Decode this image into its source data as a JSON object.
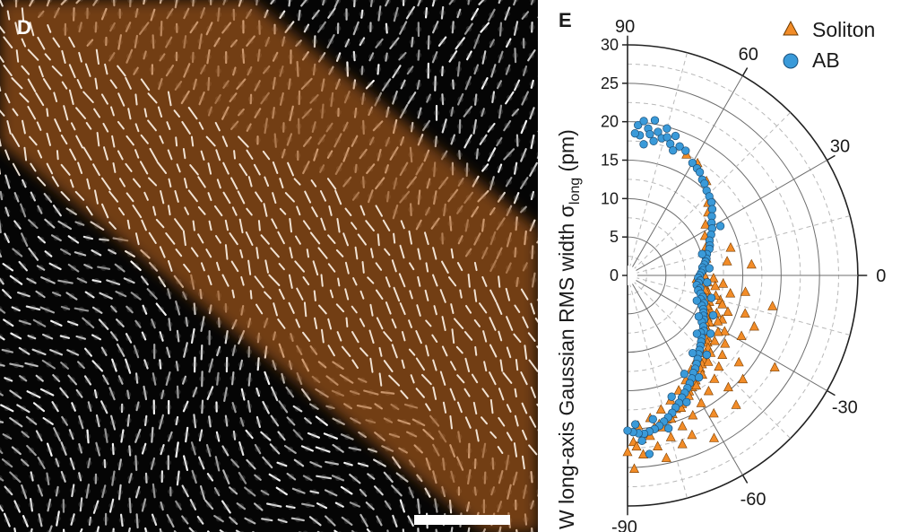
{
  "panel_d": {
    "letter": "D",
    "band_color": "#b4611c",
    "scale_bar_color": "#ffffff"
  },
  "chart_data": {
    "panel_letter": "E",
    "type": "scatter",
    "coordinate_system": "polar",
    "ylabel": "W long-axis Gaussian RMS width",
    "ylabel_symbol": "σ",
    "ylabel_subscript": "long",
    "ylabel_unit": "(pm)",
    "radial_range": [
      0,
      30
    ],
    "radial_ticks": [
      0,
      5,
      10,
      15,
      20,
      25,
      30
    ],
    "angular_range_deg": [
      -90,
      90
    ],
    "angular_labels": [
      "90",
      "60",
      "30",
      "0",
      "-30",
      "-60",
      "-90"
    ],
    "grid": true,
    "legend_position": "top-right",
    "series": [
      {
        "name": "Soliton",
        "marker": "triangle",
        "color": "#f28c28",
        "points": [
          [
            0,
            10
          ],
          [
            -3,
            9
          ],
          [
            -5,
            10.5
          ],
          [
            -8,
            10.2
          ],
          [
            -12,
            10.7
          ],
          [
            -15,
            10.8
          ],
          [
            -18,
            11.2
          ],
          [
            -22,
            11.5
          ],
          [
            -25,
            11.4
          ],
          [
            -28,
            11.8
          ],
          [
            -30,
            12.3
          ],
          [
            -33,
            12.1
          ],
          [
            -35,
            12.9
          ],
          [
            -38,
            13.2
          ],
          [
            -40,
            13.6
          ],
          [
            -42,
            14.1
          ],
          [
            -45,
            14.3
          ],
          [
            -48,
            14.9
          ],
          [
            -50,
            15.1
          ],
          [
            -52,
            15.4
          ],
          [
            -55,
            15.9
          ],
          [
            -57,
            16.3
          ],
          [
            -60,
            16.8
          ],
          [
            -62,
            17.1
          ],
          [
            -65,
            17.8
          ],
          [
            -67,
            18.2
          ],
          [
            -70,
            18.5
          ],
          [
            -72,
            19
          ],
          [
            -75,
            19.4
          ],
          [
            -78,
            19.8
          ],
          [
            -80,
            20.1
          ],
          [
            -83,
            20.8
          ],
          [
            -85,
            21.4
          ],
          [
            -88,
            21.7
          ],
          [
            -5,
            12.5
          ],
          [
            -10,
            13.6
          ],
          [
            -15,
            12.5
          ],
          [
            -20,
            13.9
          ],
          [
            -25,
            13.6
          ],
          [
            -30,
            14.6
          ],
          [
            -35,
            15.5
          ],
          [
            -40,
            16.1
          ],
          [
            -45,
            16.8
          ],
          [
            -50,
            17.6
          ],
          [
            -55,
            18.4
          ],
          [
            -60,
            19.2
          ],
          [
            -65,
            20.1
          ],
          [
            -70,
            20.9
          ],
          [
            -75,
            21.8
          ],
          [
            -80,
            22.6
          ],
          [
            -85,
            23.4
          ],
          [
            -8,
            15.5
          ],
          [
            -18,
            16.1
          ],
          [
            -28,
            16.8
          ],
          [
            -38,
            18.4
          ],
          [
            -48,
            19.6
          ],
          [
            -58,
            21.2
          ],
          [
            -68,
            22.4
          ],
          [
            -78,
            24.3
          ],
          [
            -88,
            25.2
          ],
          [
            -2,
            11.2
          ],
          [
            -7,
            11.5
          ],
          [
            -13,
            11.8
          ],
          [
            -17,
            12.9
          ],
          [
            -23,
            12.6
          ],
          [
            -27,
            13.2
          ],
          [
            -32,
            13.9
          ],
          [
            -37,
            14.2
          ],
          [
            -43,
            14.8
          ],
          [
            -47,
            15.4
          ],
          [
            -53,
            16.2
          ],
          [
            -58,
            16.9
          ],
          [
            -63,
            17.6
          ],
          [
            -68,
            18.6
          ],
          [
            -73,
            19.5
          ],
          [
            -77,
            20.3
          ],
          [
            -82,
            21.1
          ],
          [
            -87,
            22.3
          ],
          [
            -1,
            9.4
          ],
          [
            -6,
            10
          ],
          [
            -11,
            10.3
          ],
          [
            -16,
            10.5
          ],
          [
            -21,
            11.1
          ],
          [
            -26,
            11.2
          ],
          [
            -31,
            11.8
          ],
          [
            -36,
            12.3
          ],
          [
            -41,
            12.8
          ],
          [
            -46,
            13.4
          ],
          [
            -51,
            14.2
          ],
          [
            -56,
            14.8
          ],
          [
            -61,
            15.6
          ],
          [
            -66,
            16.4
          ],
          [
            -71,
            17.2
          ],
          [
            -76,
            18
          ],
          [
            -81,
            18.8
          ],
          [
            -86,
            19.6
          ],
          [
            12,
            10.5
          ],
          [
            20,
            10.9
          ],
          [
            27,
            11.3
          ],
          [
            33,
            12.1
          ],
          [
            38,
            13.3
          ],
          [
            42,
            14.1
          ],
          [
            50,
            16
          ],
          [
            58,
            17.2
          ],
          [
            64,
            17.5
          ],
          [
            8,
            13.1
          ],
          [
            15,
            13.9
          ],
          [
            5,
            16.2
          ],
          [
            -12,
            19.3
          ],
          [
            -50,
            22
          ],
          [
            -72,
            23.1
          ],
          [
            -62,
            24
          ],
          [
            -42,
            20.2
          ],
          [
            -22,
            17.8
          ],
          [
            -32,
            22.6
          ],
          [
            -90,
            23
          ]
        ]
      },
      {
        "name": "AB",
        "marker": "circle",
        "color": "#3a9ad9",
        "points": [
          [
            86,
            19.6
          ],
          [
            84,
            20.2
          ],
          [
            82,
            19.3
          ],
          [
            80,
            20.5
          ],
          [
            85,
            18.3
          ],
          [
            81,
            18.6
          ],
          [
            78,
            19.1
          ],
          [
            76,
            18.4
          ],
          [
            79,
            17.8
          ],
          [
            74,
            18.7
          ],
          [
            72,
            18
          ],
          [
            70,
            17.3
          ],
          [
            83,
            17.2
          ],
          [
            87,
            18.5
          ],
          [
            75,
            19.8
          ],
          [
            71,
            19.2
          ],
          [
            68,
            18.1
          ],
          [
            65,
            17.9
          ],
          [
            60,
            16.9
          ],
          [
            57,
            16.6
          ],
          [
            55,
            16.4
          ],
          [
            52,
            15.8
          ],
          [
            50,
            15.6
          ],
          [
            47,
            15.1
          ],
          [
            44,
            14.8
          ],
          [
            41,
            14.5
          ],
          [
            38,
            14
          ],
          [
            35,
            13.4
          ],
          [
            32,
            12.9
          ],
          [
            29,
            12.6
          ],
          [
            26,
            12.1
          ],
          [
            23,
            11.6
          ],
          [
            20,
            11.4
          ],
          [
            18,
            11.2
          ],
          [
            15,
            10.7
          ],
          [
            12,
            10.5
          ],
          [
            10,
            10.3
          ],
          [
            8,
            10.1
          ],
          [
            6,
            9.8
          ],
          [
            4,
            9.9
          ],
          [
            2,
            9.6
          ],
          [
            0,
            9.4
          ],
          [
            -2,
            9.2
          ],
          [
            -4,
            9.5
          ],
          [
            -6,
            9.3
          ],
          [
            -8,
            9.1
          ],
          [
            -10,
            9.6
          ],
          [
            -12,
            9.4
          ],
          [
            -14,
            9.8
          ],
          [
            -16,
            10.2
          ],
          [
            -18,
            10
          ],
          [
            -20,
            10.6
          ],
          [
            -22,
            10.4
          ],
          [
            -24,
            10.8
          ],
          [
            -26,
            11
          ],
          [
            -28,
            11.2
          ],
          [
            -30,
            11.5
          ],
          [
            -32,
            11.4
          ],
          [
            -34,
            11.9
          ],
          [
            -36,
            12.3
          ],
          [
            -38,
            12.1
          ],
          [
            -40,
            12.6
          ],
          [
            -42,
            12.9
          ],
          [
            -44,
            13.2
          ],
          [
            -46,
            13.5
          ],
          [
            -48,
            13.8
          ],
          [
            -50,
            14.2
          ],
          [
            -52,
            14.6
          ],
          [
            -54,
            15
          ],
          [
            -56,
            15.3
          ],
          [
            -58,
            15.8
          ],
          [
            -60,
            16.2
          ],
          [
            -62,
            16.6
          ],
          [
            -64,
            17
          ],
          [
            -66,
            17.4
          ],
          [
            -68,
            17.9
          ],
          [
            -70,
            18.3
          ],
          [
            -72,
            18.8
          ],
          [
            -74,
            19.2
          ],
          [
            -76,
            19.6
          ],
          [
            -78,
            20
          ],
          [
            -80,
            20.3
          ],
          [
            -82,
            20.5
          ],
          [
            -84,
            20.7
          ],
          [
            -86,
            20.6
          ],
          [
            -88,
            20.4
          ],
          [
            -90,
            20.2
          ],
          [
            -15,
            11.3
          ],
          [
            -25,
            12.3
          ],
          [
            -35,
            13.2
          ],
          [
            -45,
            14.6
          ],
          [
            -55,
            16.2
          ],
          [
            -65,
            18.2
          ],
          [
            -75,
            20.6
          ],
          [
            -85,
            21.6
          ],
          [
            -20,
            9.6
          ],
          [
            -30,
            10.7
          ],
          [
            -40,
            11.8
          ],
          [
            -50,
            13.2
          ],
          [
            -60,
            14.8
          ],
          [
            -70,
            16.8
          ],
          [
            -80,
            19
          ],
          [
            -87,
            19.4
          ],
          [
            -83,
            23.4
          ],
          [
            5,
            10.7
          ],
          [
            -5,
            10.4
          ],
          [
            28,
            13.7
          ],
          [
            16,
            10.1
          ]
        ]
      }
    ]
  }
}
